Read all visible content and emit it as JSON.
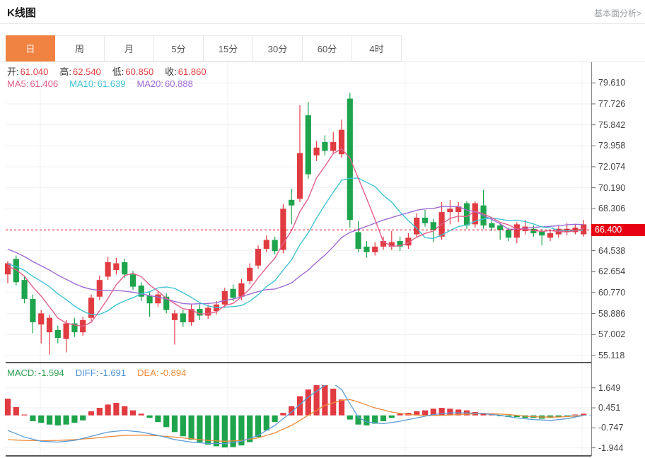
{
  "header": {
    "title": "K线图",
    "link": "基本面分析>"
  },
  "tabs": {
    "items": [
      "日",
      "周",
      "月",
      "5分",
      "15分",
      "30分",
      "60分",
      "4时"
    ],
    "active_index": 0
  },
  "info": {
    "ohlc": [
      {
        "label": "开:",
        "value": "61.040"
      },
      {
        "label": "高:",
        "value": "62.540"
      },
      {
        "label": "低:",
        "value": "60.850"
      },
      {
        "label": "收:",
        "value": "61.860"
      }
    ],
    "ma": [
      {
        "label": "MA5:",
        "value": "61.406",
        "color": "#e0608c"
      },
      {
        "label": "MA10:",
        "value": "61.639",
        "color": "#3fc3d4"
      },
      {
        "label": "MA20:",
        "value": "60.888",
        "color": "#a06ad4"
      }
    ]
  },
  "macd_info": [
    {
      "label": "MACD:",
      "value": "-1.594",
      "color": "#2fa052"
    },
    {
      "label": "DIFF:",
      "value": "-1.691",
      "color": "#4a90d9"
    },
    {
      "label": "DEA:",
      "value": "-0.894",
      "color": "#ed8b3a"
    }
  ],
  "chart_data": {
    "type": "candlestick+macd",
    "title": "K线图",
    "price_ticks": [
      "79.610",
      "77.726",
      "75.842",
      "73.958",
      "72.074",
      "70.190",
      "68.306",
      "64.538",
      "62.654",
      "60.770",
      "58.886",
      "57.002",
      "55.118"
    ],
    "current_price": "66.400",
    "macd_ticks": [
      "1.649",
      "0.451",
      "-0.747",
      "-1.944"
    ],
    "candles": [
      [
        62.4,
        63.6,
        61.6,
        63.4
      ],
      [
        63.8,
        64.1,
        61.4,
        61.7
      ],
      [
        61.9,
        62.3,
        59.8,
        60.2
      ],
      [
        60.2,
        60.6,
        57.1,
        58.1
      ],
      [
        57.9,
        59.2,
        56.2,
        58.9
      ],
      [
        57.2,
        58.8,
        55.2,
        58.5
      ],
      [
        57.4,
        57.8,
        56.2,
        56.7
      ],
      [
        56.6,
        58.3,
        55.4,
        58.0
      ],
      [
        58.0,
        58.5,
        56.8,
        57.2
      ],
      [
        57.2,
        58.6,
        56.9,
        58.3
      ],
      [
        58.5,
        60.6,
        58.2,
        60.3
      ],
      [
        60.4,
        62.3,
        60.1,
        61.9
      ],
      [
        62.2,
        64.0,
        61.9,
        63.5
      ],
      [
        62.8,
        63.9,
        62.4,
        63.4
      ],
      [
        63.5,
        63.8,
        62.1,
        62.4
      ],
      [
        62.4,
        62.7,
        61.0,
        61.3
      ],
      [
        61.4,
        61.7,
        60.0,
        60.4
      ],
      [
        60.5,
        60.8,
        58.6,
        59.8
      ],
      [
        59.8,
        60.9,
        59.5,
        60.6
      ],
      [
        60.4,
        60.7,
        58.9,
        59.2
      ],
      [
        58.3,
        59.2,
        56.1,
        58.9
      ],
      [
        58.9,
        59.2,
        57.7,
        58.1
      ],
      [
        58.1,
        59.7,
        57.8,
        59.3
      ],
      [
        59.3,
        59.7,
        58.3,
        58.7
      ],
      [
        58.7,
        59.7,
        58.4,
        59.4
      ],
      [
        59.1,
        60.0,
        58.8,
        59.7
      ],
      [
        59.7,
        61.2,
        59.4,
        60.9
      ],
      [
        61.1,
        61.5,
        60.0,
        60.3
      ],
      [
        60.4,
        62.0,
        60.1,
        61.6
      ],
      [
        61.8,
        63.4,
        61.5,
        63.0
      ],
      [
        63.2,
        65.0,
        62.9,
        64.7
      ],
      [
        64.7,
        65.9,
        64.4,
        65.5
      ],
      [
        65.5,
        65.8,
        64.2,
        64.5
      ],
      [
        64.6,
        68.7,
        64.3,
        68.3
      ],
      [
        69.1,
        70.1,
        66.9,
        68.6
      ],
      [
        69.2,
        77.6,
        68.9,
        73.3
      ],
      [
        76.7,
        77.9,
        71.0,
        71.4
      ],
      [
        73.1,
        74.4,
        72.6,
        73.8
      ],
      [
        74.3,
        74.9,
        73.1,
        73.5
      ],
      [
        73.5,
        75.2,
        73.2,
        74.3
      ],
      [
        73.2,
        76.3,
        72.9,
        75.4
      ],
      [
        78.2,
        78.7,
        66.6,
        67.3
      ],
      [
        66.2,
        67.2,
        64.4,
        64.7
      ],
      [
        64.9,
        65.4,
        63.9,
        64.4
      ],
      [
        64.4,
        65.3,
        64.1,
        64.9
      ],
      [
        64.9,
        65.8,
        64.6,
        65.4
      ],
      [
        64.9,
        66.3,
        64.6,
        65.3
      ],
      [
        65.4,
        65.8,
        64.5,
        64.9
      ],
      [
        65.0,
        66.1,
        64.7,
        65.7
      ],
      [
        66.0,
        67.9,
        65.7,
        67.5
      ],
      [
        67.5,
        68.2,
        66.7,
        67.0
      ],
      [
        67.1,
        67.4,
        65.3,
        66.4
      ],
      [
        65.8,
        68.9,
        65.5,
        68.0
      ],
      [
        68.0,
        69.1,
        66.9,
        68.3
      ],
      [
        68.0,
        68.9,
        67.1,
        68.5
      ],
      [
        68.8,
        69.0,
        66.5,
        66.8
      ],
      [
        66.9,
        69.0,
        66.6,
        68.8
      ],
      [
        68.6,
        70.0,
        66.5,
        66.8
      ],
      [
        67.0,
        67.5,
        66.3,
        66.6
      ],
      [
        66.8,
        67.0,
        65.5,
        66.4
      ],
      [
        66.4,
        66.6,
        65.4,
        65.7
      ],
      [
        65.7,
        67.1,
        65.2,
        66.9
      ],
      [
        66.3,
        67.3,
        66.0,
        66.7
      ],
      [
        66.5,
        66.8,
        65.8,
        66.1
      ],
      [
        66.3,
        66.5,
        65.0,
        65.9
      ],
      [
        65.7,
        66.4,
        65.4,
        66.1
      ],
      [
        66.0,
        66.8,
        65.7,
        66.5
      ],
      [
        66.2,
        67.0,
        65.9,
        66.5
      ],
      [
        66.2,
        66.9,
        66.0,
        66.6
      ],
      [
        66.0,
        67.3,
        65.8,
        66.9
      ]
    ],
    "ma_seed_closes": [
      68.2,
      67.8,
      67.4,
      67.0,
      66.6,
      66.2,
      65.8,
      65.4,
      65.0,
      64.6,
      64.2,
      63.9,
      63.7,
      63.5,
      63.4,
      63.3,
      63.2,
      63.1,
      63.0,
      62.9
    ],
    "macd_hist": [
      1.0,
      0.5,
      0.05,
      -0.35,
      -0.45,
      -0.55,
      -0.6,
      -0.55,
      -0.45,
      -0.3,
      0.25,
      0.45,
      0.65,
      0.75,
      0.55,
      0.3,
      0.1,
      -0.15,
      -0.4,
      -0.7,
      -1.0,
      -1.25,
      -1.45,
      -1.6,
      -1.75,
      -1.85,
      -1.92,
      -1.9,
      -1.8,
      -1.6,
      -1.3,
      -0.9,
      -0.4,
      0.15,
      0.55,
      1.15,
      1.55,
      1.85,
      1.95,
      1.6,
      0.95,
      -0.25,
      -0.55,
      -0.6,
      -0.5,
      -0.35,
      -0.15,
      0.1,
      0.15,
      0.25,
      0.3,
      0.4,
      0.45,
      0.4,
      0.35,
      0.3,
      0.2,
      0.15,
      0.1,
      -0.05,
      -0.1,
      -0.1,
      -0.15,
      -0.15,
      -0.2,
      -0.15,
      -0.1,
      -0.05,
      0.05,
      0.1
    ],
    "diff_points": [
      [
        0,
        -0.9
      ],
      [
        2,
        -1.3
      ],
      [
        4,
        -1.55
      ],
      [
        6,
        -1.6
      ],
      [
        8,
        -1.5
      ],
      [
        10,
        -1.25
      ],
      [
        12,
        -1.0
      ],
      [
        14,
        -0.9
      ],
      [
        16,
        -1.0
      ],
      [
        18,
        -1.2
      ],
      [
        20,
        -1.45
      ],
      [
        22,
        -1.6
      ],
      [
        24,
        -1.68
      ],
      [
        26,
        -1.69
      ],
      [
        28,
        -1.55
      ],
      [
        30,
        -1.2
      ],
      [
        32,
        -0.6
      ],
      [
        34,
        0.2
      ],
      [
        36,
        1.1
      ],
      [
        38,
        1.8
      ],
      [
        39,
        1.9
      ],
      [
        40,
        1.55
      ],
      [
        41,
        0.7
      ],
      [
        42,
        -0.1
      ],
      [
        43,
        -0.4
      ],
      [
        45,
        -0.5
      ],
      [
        47,
        -0.35
      ],
      [
        49,
        -0.15
      ],
      [
        51,
        0.05
      ],
      [
        53,
        0.15
      ],
      [
        55,
        0.15
      ],
      [
        57,
        0.1
      ],
      [
        59,
        0.0
      ],
      [
        61,
        -0.15
      ],
      [
        63,
        -0.25
      ],
      [
        65,
        -0.3
      ],
      [
        67,
        -0.2
      ],
      [
        69,
        0.0
      ]
    ],
    "dea_points": [
      [
        0,
        -1.45
      ],
      [
        2,
        -1.5
      ],
      [
        4,
        -1.52
      ],
      [
        6,
        -1.5
      ],
      [
        8,
        -1.45
      ],
      [
        10,
        -1.38
      ],
      [
        12,
        -1.28
      ],
      [
        14,
        -1.2
      ],
      [
        16,
        -1.18
      ],
      [
        18,
        -1.22
      ],
      [
        20,
        -1.3
      ],
      [
        22,
        -1.4
      ],
      [
        24,
        -1.5
      ],
      [
        26,
        -1.55
      ],
      [
        28,
        -1.5
      ],
      [
        30,
        -1.35
      ],
      [
        32,
        -1.05
      ],
      [
        34,
        -0.6
      ],
      [
        36,
        0.0
      ],
      [
        38,
        0.6
      ],
      [
        40,
        0.9
      ],
      [
        41,
        0.95
      ],
      [
        42,
        0.8
      ],
      [
        44,
        0.45
      ],
      [
        46,
        0.2
      ],
      [
        48,
        0.05
      ],
      [
        50,
        0.0
      ],
      [
        52,
        0.0
      ],
      [
        54,
        0.05
      ],
      [
        56,
        0.1
      ],
      [
        58,
        0.1
      ],
      [
        60,
        0.05
      ],
      [
        62,
        -0.05
      ],
      [
        64,
        -0.1
      ],
      [
        66,
        -0.1
      ],
      [
        68,
        -0.05
      ],
      [
        69,
        0.0
      ]
    ],
    "colors": {
      "up": "#e13b42",
      "down": "#1ea44c",
      "ma5": "#e0608c",
      "ma10": "#3fc3d4",
      "ma20": "#a06ad4",
      "diff": "#5b9bd5",
      "dea": "#ed8b3a",
      "price_line": "#e60012",
      "tab_active": "#f08342",
      "value_red": "#e03e3e"
    }
  }
}
